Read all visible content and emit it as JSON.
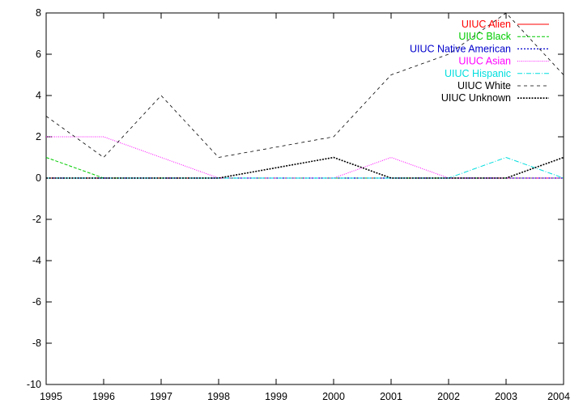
{
  "chart_data": {
    "type": "line",
    "title": "",
    "xlabel": "",
    "ylabel": "",
    "x": [
      1995,
      1996,
      1997,
      1998,
      1999,
      2000,
      2001,
      2002,
      2003,
      2004
    ],
    "xlim": [
      1995,
      2004
    ],
    "ylim": [
      -10,
      8
    ],
    "xticks": [
      "1995",
      "1996",
      "1997",
      "1998",
      "1999",
      "2000",
      "2001",
      "2002",
      "2003",
      "2004"
    ],
    "yticks": [
      "-10",
      "-8",
      "-6",
      "-4",
      "-2",
      "0",
      "2",
      "4",
      "6",
      "8"
    ],
    "grid": false,
    "legend_position": "top-right",
    "series": [
      {
        "name": "UIUC Alien",
        "color": "#ff0000",
        "dash": "solid",
        "values": [
          0,
          0,
          0,
          0,
          0,
          0,
          0,
          0,
          0,
          0
        ]
      },
      {
        "name": "UIUC Black",
        "color": "#00cc00",
        "dash": "dashed",
        "values": [
          1,
          0,
          0,
          0,
          0,
          0,
          0,
          0,
          0,
          0
        ]
      },
      {
        "name": "UIUC Native American",
        "color": "#0000cc",
        "dash": "dotted",
        "values": [
          0,
          0,
          0,
          0,
          0,
          0,
          0,
          0,
          0,
          0
        ]
      },
      {
        "name": "UIUC Asian",
        "color": "#ff00ff",
        "dash": "dotted-fine",
        "values": [
          2,
          2,
          1,
          0,
          0,
          0,
          1,
          0,
          0,
          0
        ]
      },
      {
        "name": "UIUC Hispanic",
        "color": "#00dddd",
        "dash": "dash-dot",
        "values": [
          0,
          0,
          0,
          0,
          0,
          0,
          0,
          0,
          1,
          0
        ]
      },
      {
        "name": "UIUC White",
        "color": "#000000",
        "dash": "short-dash",
        "values": [
          3,
          1,
          4,
          1,
          1.5,
          2,
          5,
          6,
          8,
          5
        ]
      },
      {
        "name": "UIUC Unknown",
        "color": "#000000",
        "dash": "dense-dotted",
        "values": [
          0,
          0,
          0,
          0,
          0.5,
          1,
          0,
          0,
          0,
          1
        ]
      }
    ]
  }
}
